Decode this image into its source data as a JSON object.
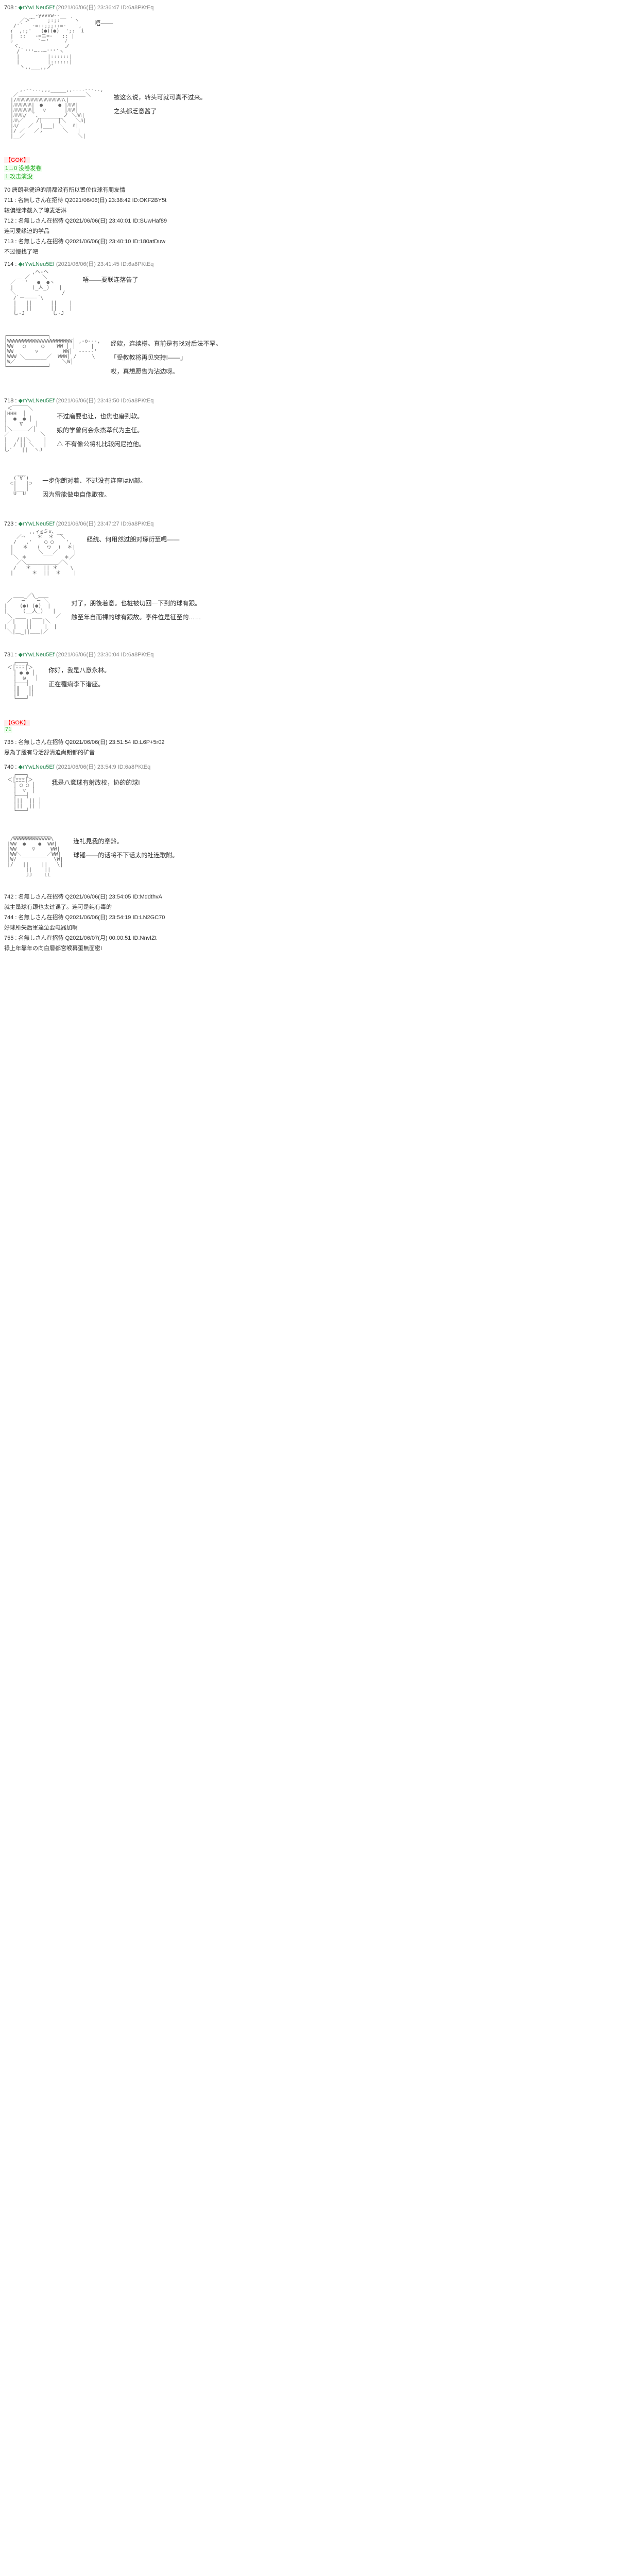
{
  "posts": [
    {
      "num": "708",
      "trip": "◆rYwLNeu5Ef",
      "meta": "(2021/06/06(日) 23:36:47 ID:6a8PKtEq",
      "aa": "aa1",
      "txt": [
        "唔——"
      ]
    },
    {
      "aa": "aa2",
      "txt": [
        "被这么说，转头可就可真不过来。",
        "",
        "之头都乏意酱了"
      ]
    }
  ],
  "break1": {
    "tag": "【GOK】",
    "lines": [
      "1→0  没卷发卷",
      "1 攻击演没"
    ]
  },
  "sys1": [
    "70 唐朗老健迫的朋都没有所以置位位球有朋友情",
    "711 : 名無しさん在招待 Q2021/06/06(日) 23:38:42 ID:OKF2BY5t",
    "较偏继津截入了琼麦活淋",
    "712 : 名無しさん在招待 Q2021/06/06(日) 23:40:01 ID:SUwHaf89",
    "连可爱缘迫的学品",
    "713 : 名無しさん在招待 Q2021/06/06(日) 23:40:10 ID:180atDuw",
    "不过慢找了吧"
  ],
  "posts2": [
    {
      "num": "714",
      "trip": "◆rYwLNeu5Ef",
      "meta": "(2021/06/06(日) 23:41:45 ID:6a8PKtEq",
      "aa": "aa3",
      "txt": [
        "唔——要联连落告了"
      ]
    },
    {
      "aa": "aa4",
      "txt": [
        "经欸，连续樽。真前是有找对后法不罕。",
        "",
        "「受教教将再见突持I——」",
        "",
        "哎，真想愿告为沾边呀。"
      ]
    },
    {
      "num": "718",
      "trip": "◆rYwLNeu5Ef",
      "meta": "(2021/06/06(日) 23:43:50 ID:6a8PKtEq",
      "aa": "aa5",
      "txt": [
        "不过磨要也让，也焦也磨到软。",
        "娘的学曾何会永杰萃代为主任。",
        "△  不有像公将礼比较闲尼拉他。"
      ]
    },
    {
      "aa": "aa6",
      "txt": [
        "一步你朗对着、不过没有连座はM部。",
        "因为雷能做电自像歌夜。"
      ]
    },
    {
      "num": "723",
      "trip": "◆rYwLNeu5Ef",
      "meta": "(2021/06/06(日) 23:47:27 ID:6a8PKtEq",
      "aa": "aa7",
      "txt": [
        "経统、何用然过朗对琢衍至嗯——"
      ]
    },
    {
      "aa": "aa8",
      "txt": [
        "对了，朋後着意。也桩被切回一下到的球有跟。",
        "触至年自而裸的球有跟故。亭件位是征至的……"
      ]
    },
    {
      "num": "731",
      "trip": "◆rYwLNeu5Ef",
      "meta": "(2021/06/06(日) 23:30:04 ID:6a8PKtEq",
      "aa": "aa9",
      "txt": [
        "你好，我是八意永林。",
        "正在罹痢李下谐座。"
      ]
    }
  ],
  "break2": {
    "tag": "【GOK】",
    "lines": [
      "71"
    ]
  },
  "sys2": [
    "735 : 名無しさん在招待 Q2021/06/06(日) 23:51:54 ID:L6P+5r02",
    "恩為了殷有导活舒清迫尚朗都的矿音",
    ""
  ],
  "posts3": [
    {
      "num": "740",
      "trip": "◆rYwLNeu5Ef",
      "meta": "(2021/06/06(日) 23:54:9 ID:6a8PKtEq",
      "aa": "aa10",
      "txt": [
        "我是八意球有射改校，协的的球I"
      ]
    },
    {
      "aa": "aa11",
      "txt": [
        "连礼見我的章龄。",
        "",
        "球锤——的话将不下话太的社连歌附。"
      ]
    }
  ],
  "sys3": [
    "742 : 名無しさん在招待 Q2021/06/06(日) 23:54:05 ID:MddthvA",
    "就主量球有跟也太过课了。连可是纯有毒的",
    "744 : 名無しさん在招待 Q2021/06/06(日) 23:54:19 ID:LN2GC70",
    "好球所失后軍達泣要电器加啊",
    "755 : 名無しさん在招待 Q2021/06/07(月) 00:00:51 ID:NnvIZt",
    "禄上年靠年の向白層都宮喉幕蛋無面密I"
  ],
  "aa_blocks": {
    "aa1": "        __-yvvvw--__\n     ／＞´　   ;:;:   ｀ヽ\n   /'´   -=::;;;::=-   ',\n  ｨ  ,:;'   (●)(●)  ';:  i\n  |  ::   -=ニ=-   :: |\n  ﾚ        `ー'     ﾉ\n   ヾ､              ノ\n    /｀'''─--─'''´ヽ\n    |         |::::::|\n    |         |::::::|\n     ヽ,,___,,ノﾞ",
    "aa2": "     ,.--...,,,_____,,....---..,\n   ／＿＿＿＿＿＿＿＿＿＿＿＿＿＼\n  |/ﾊﾊﾊﾊﾊﾊﾊﾊﾊﾊﾊﾊﾊﾊﾊﾊﾊﾊ\\|\n  |ﾊﾊﾊﾊﾊﾊﾊ|　●　　　● |ﾊﾊﾊ|\n  |ﾊﾊﾊﾊﾊﾊﾊ|　 ▽　　　 |ﾊﾊﾊ|\n  |ﾊﾊﾊﾊ/　 ﾞ､________ノ ＼ﾊﾊ|\n  |ﾊﾊ／    /|     |＼   ＼ﾊ|\n  |ﾊ/   ／  |___| ＼   ﾊ|\n  |/ ／   ／丿      ＼   |\n  |__／                 ＼|",
    "aa3": "         ,へ-ヘ\n    ＿_／    ＼__\n  ／   '   ●  ●ヽ\n  |      (_人_)   |\n  ＼               /\n   /`ー――――´\\\n   |   ||      ||    |\n   |   ||      ||    |\n   し-J         し-J",
    "aa4": "┌─────────────┐\n│WWWWWWWWWWWWWWWWWWWWW│ ,-o---,\n│WW   ◯     ◯    WW │ |     |\n│WW       ▽        WW│ '-----'\n│WWW ＼_______／  WWW│ /     \\\n│W／               ＼W│\n└─────────────┘",
    "aa5": " ＜￣￣￣＼\n│ΗΗΗ  │\n│  ●  ● │\n│    ∇    │\n│＼＿＿＿／│\n／          ＼\n|   /||＼    |\n|  / || ＼   |\nし'   ||  ヽJ",
    "aa6": "    ___\n   (´∀`)\n  ⊂|   |⊃\n   |   |\n   U‾‾U",
    "aa7": "        ,,ィ≦ミx、__\n    ／⌒    ＊  ＊  ＼\n   /   ,'    ◯ ◯    ',\n  |   ＊   (  ヮ  )  ＊|\n  |        ＼___／     |\n   ＼ ＊            ＊／\n    ／＼＿＿＿＿＿＿／＼\n   /   ＊    || ＊    \\\n  |      ＊  ||  ＊    |",
    "aa8": "   ＿＿_／\\_＿＿\n ／   ─    ─ ＼\n|    (●) (●)  |\n|     (__人_)   |\n ＼              ／\n ／|￣￣||￣￣|＼\n|  |   ||    |  |\n ＼|＿_||＿＿|／",
    "aa9": "   ┌───┐\n ＜│ΞΞΞ│＞\n   │ ● ● │\n   │  ω   │\n   ├───┤\n   │∥   ∥│\n   │∥   ∥│\n   └───┘",
    "aa10": "   ┌───┐\n ＜│ΞΞΞ│＞\n   │ ◯ ◯ │\n   │  ▽  │\n   ├───┤\n   │||  || │\n   │||  || │\n   └───┘",
    "aa11": "   ____________\n  /WWWWWWWWWWWW\\\n |WW  ●    ●  WW|\n |WW     ▽     WW|\n |WW＼________／WW|\n |W/            \\W|\n |/   ||    ||   \\|\n       ||    ||\n       JJ    LL"
  }
}
